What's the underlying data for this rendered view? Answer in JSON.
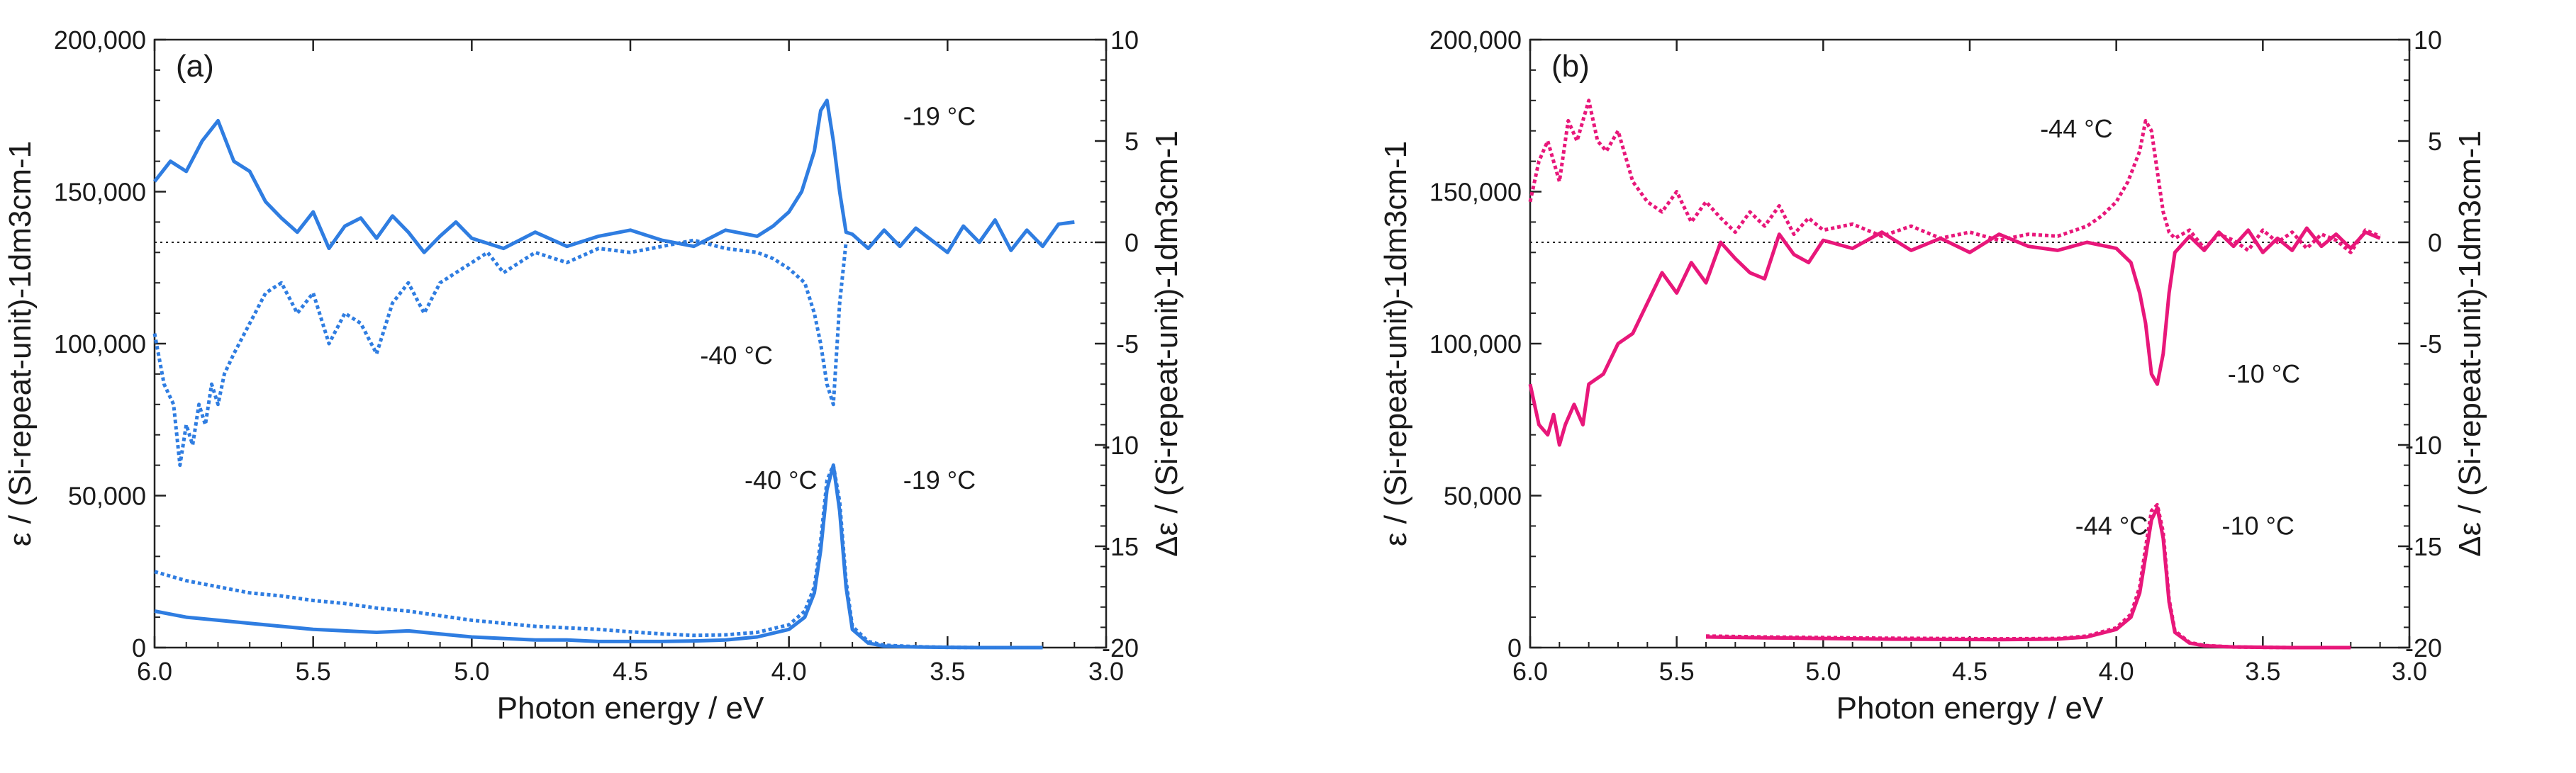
{
  "chart_data": [
    {
      "type": "line",
      "panel_label": "(a)",
      "xlabel": "Photon energy / eV",
      "ylabel_left": "ε / (Si-repeat-unit)-1dm3cm-1",
      "ylabel_right": "Δε / (Si-repeat-unit)-1dm3cm-1",
      "xlim": [
        6.0,
        3.0
      ],
      "ylim_left": [
        0,
        200000
      ],
      "ylim_right": [
        -20,
        10
      ],
      "xticks": [
        6.0,
        5.5,
        5.0,
        4.5,
        4.0,
        3.5,
        3.0
      ],
      "xtick_labels": [
        "6.0",
        "5.5",
        "5.0",
        "4.5",
        "4.0",
        "3.5",
        "3.0"
      ],
      "yticks_left": [
        0,
        50000,
        100000,
        150000,
        200000
      ],
      "ytick_labels_left": [
        "0",
        "50,000",
        "100,000",
        "150,000",
        "200,000"
      ],
      "yticks_right": [
        -20,
        -15,
        -10,
        -5,
        0,
        5,
        10
      ],
      "ytick_labels_right": [
        "-20",
        "-15",
        "-10",
        "-5",
        "0",
        "5",
        "10"
      ],
      "color": "#2f7de1",
      "zero_line": "dotted",
      "series": [
        {
          "name": "ε -19 °C",
          "axis": "left",
          "style": "solid",
          "x": [
            6.0,
            5.9,
            5.8,
            5.7,
            5.6,
            5.5,
            5.4,
            5.3,
            5.2,
            5.1,
            5.0,
            4.9,
            4.8,
            4.7,
            4.6,
            4.5,
            4.4,
            4.3,
            4.2,
            4.1,
            4.0,
            3.95,
            3.92,
            3.9,
            3.88,
            3.86,
            3.84,
            3.82,
            3.8,
            3.75,
            3.7,
            3.6,
            3.5,
            3.4,
            3.3,
            3.2
          ],
          "y": [
            12000,
            10000,
            9000,
            8000,
            7000,
            6000,
            5500,
            5000,
            5500,
            4500,
            3500,
            3000,
            2500,
            2500,
            2000,
            2000,
            2000,
            2200,
            2500,
            3500,
            6000,
            10000,
            18000,
            32000,
            52000,
            60000,
            45000,
            20000,
            6000,
            1500,
            500,
            200,
            100,
            0,
            0,
            0
          ]
        },
        {
          "name": "ε -40 °C",
          "axis": "left",
          "style": "dotted",
          "x": [
            6.0,
            5.9,
            5.8,
            5.7,
            5.6,
            5.5,
            5.4,
            5.3,
            5.2,
            5.1,
            5.0,
            4.9,
            4.8,
            4.7,
            4.6,
            4.5,
            4.4,
            4.3,
            4.2,
            4.1,
            4.0,
            3.95,
            3.92,
            3.9,
            3.88,
            3.86,
            3.84,
            3.82,
            3.8,
            3.75,
            3.7,
            3.6,
            3.5,
            3.4,
            3.3,
            3.2
          ],
          "y": [
            25000,
            22000,
            20000,
            18000,
            17000,
            15500,
            14500,
            13000,
            12000,
            10500,
            9000,
            8000,
            7000,
            6500,
            6000,
            5200,
            4500,
            4000,
            4200,
            5000,
            7500,
            12000,
            20000,
            35000,
            55000,
            60000,
            48000,
            22000,
            7000,
            2000,
            800,
            300,
            100,
            0,
            0,
            0
          ]
        },
        {
          "name": "Δε -19 °C",
          "axis": "right",
          "style": "solid",
          "x": [
            6.0,
            5.95,
            5.9,
            5.85,
            5.8,
            5.75,
            5.7,
            5.65,
            5.6,
            5.55,
            5.5,
            5.45,
            5.4,
            5.35,
            5.3,
            5.25,
            5.2,
            5.15,
            5.1,
            5.05,
            5.0,
            4.9,
            4.8,
            4.7,
            4.6,
            4.5,
            4.4,
            4.3,
            4.2,
            4.1,
            4.05,
            4.0,
            3.96,
            3.92,
            3.9,
            3.88,
            3.86,
            3.84,
            3.82,
            3.8,
            3.75,
            3.7,
            3.65,
            3.6,
            3.55,
            3.5,
            3.45,
            3.4,
            3.35,
            3.3,
            3.25,
            3.2,
            3.15,
            3.1
          ],
          "y": [
            3,
            4,
            3.5,
            5,
            6,
            4,
            3.5,
            2,
            1.2,
            0.5,
            1.5,
            -0.3,
            0.8,
            1.2,
            0.2,
            1.3,
            0.5,
            -0.5,
            0.3,
            1.0,
            0.2,
            -0.3,
            0.5,
            -0.2,
            0.3,
            0.6,
            0.1,
            -0.2,
            0.6,
            0.3,
            0.8,
            1.5,
            2.5,
            4.5,
            6.5,
            7.0,
            5.0,
            2.5,
            0.5,
            0.4,
            -0.3,
            0.6,
            -0.2,
            0.7,
            0.1,
            -0.5,
            0.8,
            0.0,
            1.1,
            -0.4,
            0.6,
            -0.2,
            0.9,
            1.0
          ]
        },
        {
          "name": "Δε -40 °C",
          "axis": "right",
          "style": "dotted",
          "x": [
            6.0,
            5.97,
            5.94,
            5.92,
            5.9,
            5.88,
            5.86,
            5.84,
            5.82,
            5.8,
            5.78,
            5.75,
            5.7,
            5.65,
            5.6,
            5.55,
            5.5,
            5.45,
            5.4,
            5.35,
            5.3,
            5.25,
            5.2,
            5.15,
            5.1,
            5.05,
            5.0,
            4.95,
            4.9,
            4.8,
            4.7,
            4.6,
            4.5,
            4.4,
            4.3,
            4.2,
            4.1,
            4.05,
            4.0,
            3.95,
            3.92,
            3.9,
            3.88,
            3.86,
            3.84,
            3.82
          ],
          "y": [
            -4.5,
            -7,
            -8,
            -11,
            -9,
            -10,
            -8,
            -9,
            -7,
            -8,
            -6.5,
            -5.5,
            -4,
            -2.5,
            -2,
            -3.5,
            -2.5,
            -5,
            -3.5,
            -4,
            -5.5,
            -3,
            -2,
            -3.5,
            -2,
            -1.5,
            -1,
            -0.5,
            -1.5,
            -0.5,
            -1,
            -0.3,
            -0.5,
            -0.2,
            0.1,
            -0.3,
            -0.5,
            -0.8,
            -1.3,
            -2,
            -3.5,
            -5,
            -7,
            -8,
            -3,
            0
          ]
        }
      ],
      "annotations": [
        {
          "text": "-19 °C",
          "x": 3.64,
          "y_right": 6.2
        },
        {
          "text": "-40 °C",
          "x": 4.28,
          "y_right": -5.6
        },
        {
          "text": "-40 °C",
          "x": 4.14,
          "y_left": 55000
        },
        {
          "text": "-19 °C",
          "x": 3.64,
          "y_left": 55000
        }
      ]
    },
    {
      "type": "line",
      "panel_label": "(b)",
      "xlabel": "Photon energy / eV",
      "ylabel_left": "ε / (Si-repeat-unit)-1dm3cm-1",
      "ylabel_right": "Δε / (Si-repeat-unit)-1dm3cm-1",
      "xlim": [
        6.0,
        3.0
      ],
      "ylim_left": [
        0,
        200000
      ],
      "ylim_right": [
        -20,
        10
      ],
      "xticks": [
        6.0,
        5.5,
        5.0,
        4.5,
        4.0,
        3.5,
        3.0
      ],
      "xtick_labels": [
        "6.0",
        "5.5",
        "5.0",
        "4.5",
        "4.0",
        "3.5",
        "3.0"
      ],
      "yticks_left": [
        0,
        50000,
        100000,
        150000,
        200000
      ],
      "ytick_labels_left": [
        "0",
        "50,000",
        "100,000",
        "150,000",
        "200,000"
      ],
      "yticks_right": [
        -20,
        -15,
        -10,
        -5,
        0,
        5,
        10
      ],
      "ytick_labels_right": [
        "-20",
        "-15",
        "-10",
        "-5",
        "0",
        "5",
        "10"
      ],
      "color": "#e8177a",
      "zero_line": "dotted",
      "series": [
        {
          "name": "ε -10 °C",
          "axis": "left",
          "style": "solid",
          "x": [
            5.4,
            5.2,
            5.0,
            4.8,
            4.6,
            4.4,
            4.2,
            4.1,
            4.0,
            3.95,
            3.92,
            3.9,
            3.88,
            3.86,
            3.84,
            3.82,
            3.8,
            3.75,
            3.7,
            3.6,
            3.5,
            3.4,
            3.3,
            3.2
          ],
          "y": [
            3500,
            3200,
            3000,
            2800,
            2700,
            2600,
            2800,
            3500,
            6000,
            10000,
            18000,
            30000,
            42000,
            46000,
            36000,
            15000,
            5000,
            1500,
            600,
            200,
            100,
            0,
            0,
            0
          ]
        },
        {
          "name": "ε -44 °C",
          "axis": "left",
          "style": "dotted",
          "x": [
            5.4,
            5.2,
            5.0,
            4.8,
            4.6,
            4.4,
            4.2,
            4.1,
            4.0,
            3.95,
            3.92,
            3.9,
            3.88,
            3.86,
            3.84,
            3.82,
            3.8,
            3.75,
            3.7,
            3.6,
            3.5,
            3.4,
            3.3,
            3.2
          ],
          "y": [
            3800,
            3500,
            3300,
            3100,
            3000,
            2900,
            3000,
            3800,
            6500,
            11000,
            20000,
            33000,
            45000,
            47000,
            38000,
            16000,
            5500,
            1700,
            700,
            200,
            100,
            0,
            0,
            0
          ]
        },
        {
          "name": "Δε -10 °C",
          "axis": "right",
          "style": "solid",
          "x": [
            6.0,
            5.97,
            5.94,
            5.92,
            5.9,
            5.88,
            5.85,
            5.82,
            5.8,
            5.75,
            5.7,
            5.65,
            5.6,
            5.55,
            5.5,
            5.45,
            5.4,
            5.35,
            5.3,
            5.25,
            5.2,
            5.15,
            5.1,
            5.05,
            5.0,
            4.9,
            4.8,
            4.7,
            4.6,
            4.5,
            4.4,
            4.3,
            4.2,
            4.1,
            4.0,
            3.95,
            3.92,
            3.9,
            3.88,
            3.86,
            3.84,
            3.82,
            3.8,
            3.75,
            3.7,
            3.65,
            3.6,
            3.55,
            3.5,
            3.45,
            3.4,
            3.35,
            3.3,
            3.25,
            3.2,
            3.15,
            3.1
          ],
          "y": [
            -7,
            -9,
            -9.5,
            -8.5,
            -10,
            -9,
            -8,
            -9,
            -7,
            -6.5,
            -5,
            -4.5,
            -3,
            -1.5,
            -2.5,
            -1,
            -2,
            0,
            -0.8,
            -1.5,
            -1.8,
            0.4,
            -0.6,
            -1.0,
            0.1,
            -0.3,
            0.5,
            -0.4,
            0.2,
            -0.5,
            0.4,
            -0.2,
            -0.4,
            0.0,
            -0.3,
            -1.0,
            -2.5,
            -4,
            -6.5,
            -7,
            -5.5,
            -2.5,
            -0.5,
            0.3,
            -0.4,
            0.5,
            -0.2,
            0.6,
            -0.5,
            0.2,
            -0.4,
            0.7,
            -0.2,
            0.4,
            -0.3,
            0.5,
            0.2
          ]
        },
        {
          "name": "Δε -44 °C",
          "axis": "right",
          "style": "dotted",
          "x": [
            6.0,
            5.97,
            5.94,
            5.9,
            5.87,
            5.84,
            5.8,
            5.77,
            5.74,
            5.7,
            5.65,
            5.6,
            5.55,
            5.5,
            5.45,
            5.4,
            5.35,
            5.3,
            5.25,
            5.2,
            5.15,
            5.1,
            5.05,
            5.0,
            4.9,
            4.8,
            4.7,
            4.6,
            4.5,
            4.4,
            4.3,
            4.2,
            4.1,
            4.05,
            4.0,
            3.96,
            3.92,
            3.9,
            3.88,
            3.86,
            3.84,
            3.82,
            3.8,
            3.75,
            3.7,
            3.65,
            3.6,
            3.55,
            3.5,
            3.45,
            3.4,
            3.35,
            3.3,
            3.25,
            3.2,
            3.15,
            3.1
          ],
          "y": [
            2,
            4,
            5,
            3,
            6,
            5,
            7,
            5,
            4.5,
            5.5,
            3,
            2,
            1.5,
            2.5,
            1,
            2,
            1.2,
            0.5,
            1.5,
            0.8,
            1.8,
            0.4,
            1.2,
            0.6,
            0.9,
            0.3,
            0.8,
            0.2,
            0.5,
            0.1,
            0.4,
            0.3,
            0.8,
            1.3,
            2,
            3,
            4.5,
            6,
            5.5,
            3.5,
            1.5,
            0.5,
            0.2,
            0.6,
            -0.3,
            0.4,
            0.1,
            -0.4,
            0.6,
            0.0,
            0.5,
            -0.3,
            0.4,
            0.1,
            -0.5,
            0.6,
            0.3
          ]
        }
      ],
      "annotations": [
        {
          "text": "-44 °C",
          "x": 4.26,
          "y_right": 5.6
        },
        {
          "text": "-10 °C",
          "x": 3.62,
          "y_right": -6.5
        },
        {
          "text": "-44 °C",
          "x": 4.14,
          "y_left": 40000
        },
        {
          "text": "-10 °C",
          "x": 3.64,
          "y_left": 40000
        }
      ]
    }
  ]
}
